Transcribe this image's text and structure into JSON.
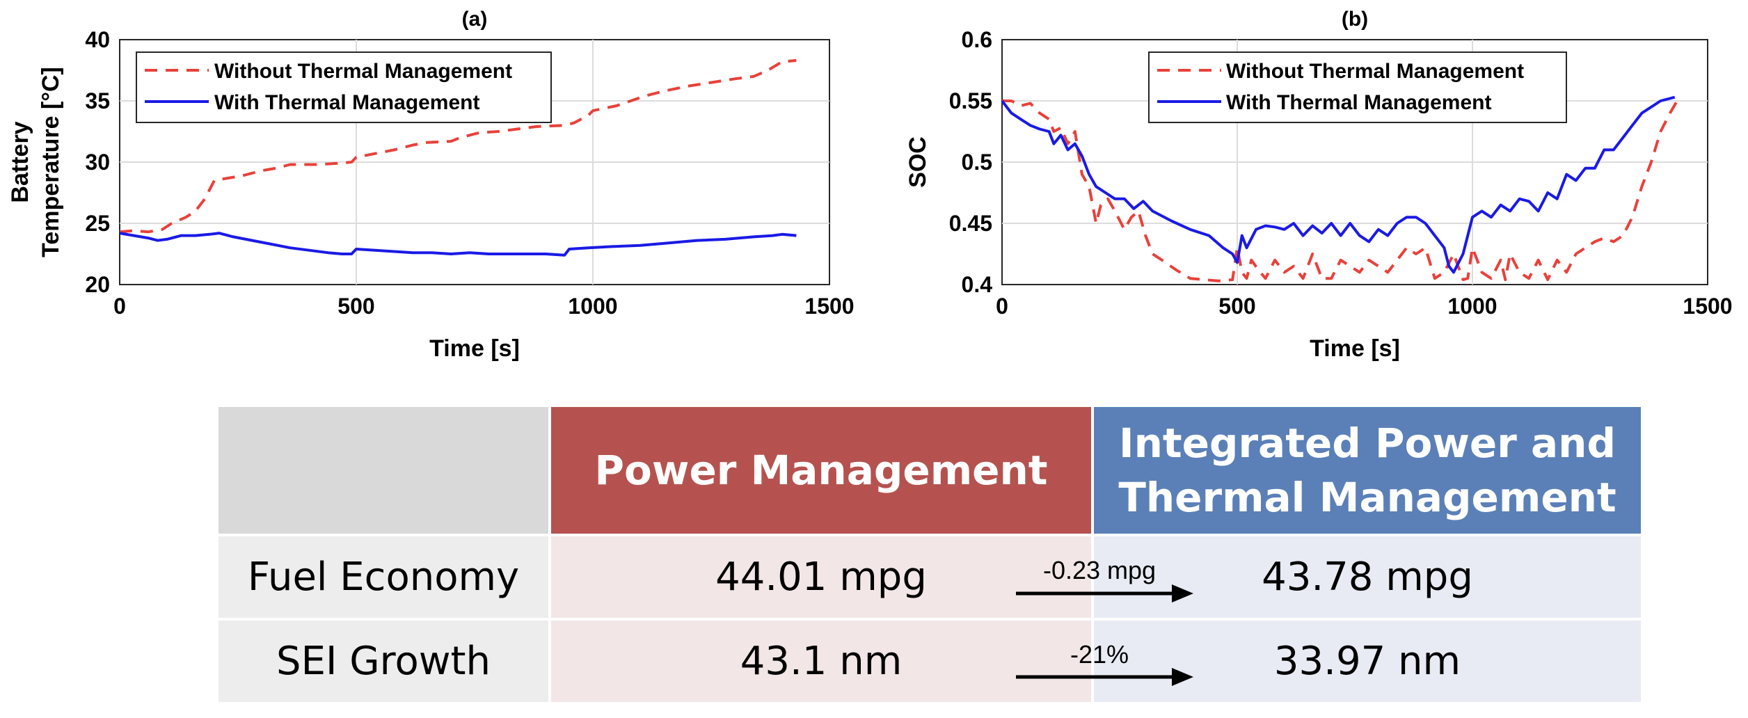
{
  "chart_data": [
    {
      "type": "line",
      "title": "(a)",
      "xlabel": "Time [s]",
      "ylabel": [
        "Battery",
        "Temperature [°C]"
      ],
      "xlim": [
        0,
        1500
      ],
      "ylim": [
        20,
        40
      ],
      "xticks": [
        0,
        500,
        1000,
        1500
      ],
      "yticks": [
        20,
        25,
        30,
        35,
        40
      ],
      "grid": true,
      "legend_position": "top-left",
      "series": [
        {
          "name": "Without Thermal Management",
          "color": "#e8413a",
          "style": "dashed",
          "x": [
            0,
            30,
            60,
            90,
            110,
            140,
            160,
            180,
            200,
            230,
            260,
            300,
            330,
            360,
            380,
            420,
            460,
            490,
            500,
            540,
            580,
            620,
            650,
            700,
            720,
            760,
            800,
            840,
            880,
            940,
            960,
            990,
            1000,
            1050,
            1080,
            1110,
            1150,
            1200,
            1250,
            1300,
            1340,
            1370,
            1400,
            1430
          ],
          "y": [
            24.3,
            24.4,
            24.3,
            24.5,
            25.0,
            25.5,
            26.0,
            27.0,
            28.5,
            28.7,
            28.9,
            29.3,
            29.5,
            29.8,
            29.8,
            29.8,
            29.9,
            30.0,
            30.4,
            30.7,
            31.0,
            31.4,
            31.6,
            31.7,
            32.0,
            32.4,
            32.5,
            32.7,
            32.9,
            33.0,
            33.2,
            33.8,
            34.2,
            34.6,
            35.0,
            35.4,
            35.8,
            36.2,
            36.5,
            36.8,
            37.0,
            37.5,
            38.2,
            38.3
          ]
        },
        {
          "name": "With Thermal Management",
          "color": "#1a1ae6",
          "style": "solid",
          "x": [
            0,
            30,
            60,
            80,
            100,
            130,
            160,
            190,
            210,
            240,
            280,
            320,
            360,
            400,
            440,
            470,
            490,
            500,
            540,
            580,
            620,
            660,
            700,
            740,
            780,
            820,
            860,
            900,
            940,
            950,
            990,
            1040,
            1100,
            1160,
            1220,
            1280,
            1340,
            1380,
            1400,
            1430
          ],
          "y": [
            24.2,
            24.0,
            23.8,
            23.6,
            23.7,
            24.0,
            24.0,
            24.1,
            24.2,
            23.9,
            23.6,
            23.3,
            23.0,
            22.8,
            22.6,
            22.5,
            22.5,
            22.9,
            22.8,
            22.7,
            22.6,
            22.6,
            22.5,
            22.6,
            22.5,
            22.5,
            22.5,
            22.5,
            22.4,
            22.9,
            23.0,
            23.1,
            23.2,
            23.4,
            23.6,
            23.7,
            23.9,
            24.0,
            24.1,
            24.0
          ]
        }
      ]
    },
    {
      "type": "line",
      "title": "(b)",
      "xlabel": "Time [s]",
      "ylabel": "SOC",
      "xlim": [
        0,
        1500
      ],
      "ylim": [
        0.4,
        0.6
      ],
      "xticks": [
        0,
        500,
        1000,
        1500
      ],
      "yticks": [
        0.4,
        0.45,
        0.5,
        0.55,
        0.6
      ],
      "grid": true,
      "legend_position": "top-center",
      "series": [
        {
          "name": "Without Thermal Management",
          "color": "#e8413a",
          "style": "dashed",
          "x": [
            0,
            20,
            40,
            60,
            80,
            100,
            110,
            125,
            140,
            155,
            170,
            185,
            200,
            210,
            225,
            240,
            260,
            275,
            290,
            305,
            320,
            340,
            370,
            400,
            430,
            460,
            490,
            500,
            510,
            520,
            530,
            545,
            560,
            580,
            600,
            620,
            640,
            660,
            680,
            700,
            720,
            740,
            760,
            780,
            800,
            820,
            840,
            860,
            880,
            900,
            920,
            940,
            960,
            980,
            990,
            1000,
            1020,
            1040,
            1060,
            1070,
            1080,
            1100,
            1120,
            1140,
            1160,
            1180,
            1200,
            1220,
            1240,
            1260,
            1280,
            1300,
            1320,
            1340,
            1360,
            1380,
            1400,
            1420,
            1435
          ],
          "y": [
            0.55,
            0.55,
            0.546,
            0.548,
            0.54,
            0.535,
            0.525,
            0.528,
            0.515,
            0.525,
            0.49,
            0.48,
            0.45,
            0.465,
            0.47,
            0.46,
            0.445,
            0.455,
            0.46,
            0.44,
            0.425,
            0.42,
            0.412,
            0.405,
            0.404,
            0.403,
            0.404,
            0.43,
            0.41,
            0.405,
            0.42,
            0.412,
            0.405,
            0.42,
            0.41,
            0.415,
            0.405,
            0.425,
            0.405,
            0.405,
            0.42,
            0.415,
            0.41,
            0.42,
            0.415,
            0.41,
            0.42,
            0.43,
            0.425,
            0.43,
            0.405,
            0.41,
            0.425,
            0.404,
            0.405,
            0.43,
            0.41,
            0.405,
            0.42,
            0.404,
            0.425,
            0.41,
            0.405,
            0.42,
            0.404,
            0.42,
            0.41,
            0.425,
            0.43,
            0.435,
            0.438,
            0.435,
            0.44,
            0.455,
            0.48,
            0.5,
            0.525,
            0.54,
            0.55
          ]
        },
        {
          "name": "With Thermal Management",
          "color": "#1a1ae6",
          "style": "solid",
          "x": [
            0,
            20,
            40,
            60,
            80,
            100,
            110,
            125,
            140,
            155,
            170,
            185,
            200,
            220,
            240,
            260,
            280,
            300,
            320,
            360,
            400,
            440,
            470,
            490,
            500,
            510,
            520,
            540,
            560,
            580,
            600,
            620,
            640,
            660,
            680,
            700,
            720,
            740,
            760,
            780,
            800,
            820,
            840,
            860,
            880,
            900,
            920,
            940,
            950,
            960,
            980,
            1000,
            1020,
            1040,
            1060,
            1080,
            1100,
            1120,
            1140,
            1160,
            1180,
            1200,
            1220,
            1240,
            1260,
            1280,
            1300,
            1320,
            1340,
            1360,
            1380,
            1400,
            1420,
            1430
          ],
          "y": [
            0.55,
            0.54,
            0.535,
            0.53,
            0.527,
            0.525,
            0.515,
            0.522,
            0.51,
            0.515,
            0.505,
            0.49,
            0.48,
            0.475,
            0.47,
            0.47,
            0.462,
            0.468,
            0.46,
            0.452,
            0.445,
            0.44,
            0.43,
            0.425,
            0.418,
            0.44,
            0.43,
            0.445,
            0.448,
            0.447,
            0.445,
            0.45,
            0.44,
            0.448,
            0.442,
            0.45,
            0.44,
            0.45,
            0.44,
            0.435,
            0.445,
            0.44,
            0.45,
            0.455,
            0.455,
            0.45,
            0.44,
            0.43,
            0.415,
            0.41,
            0.425,
            0.455,
            0.46,
            0.455,
            0.465,
            0.46,
            0.47,
            0.468,
            0.46,
            0.475,
            0.47,
            0.49,
            0.485,
            0.495,
            0.495,
            0.51,
            0.51,
            0.52,
            0.53,
            0.54,
            0.545,
            0.55,
            0.552,
            0.553
          ]
        }
      ]
    }
  ],
  "table": {
    "headers": [
      "",
      "Power Management",
      "Integrated Power and Thermal Management"
    ],
    "header_ipt_line1": "Integrated Power and",
    "header_ipt_line2": "Thermal Management",
    "rows": [
      {
        "label": "Fuel Economy",
        "pm": "44.01 mpg",
        "ipt": "43.78 mpg",
        "change": "-0.23 mpg"
      },
      {
        "label": "SEI Growth",
        "pm": "43.1 nm",
        "ipt": "33.97 nm",
        "change": "-21%"
      }
    ]
  }
}
